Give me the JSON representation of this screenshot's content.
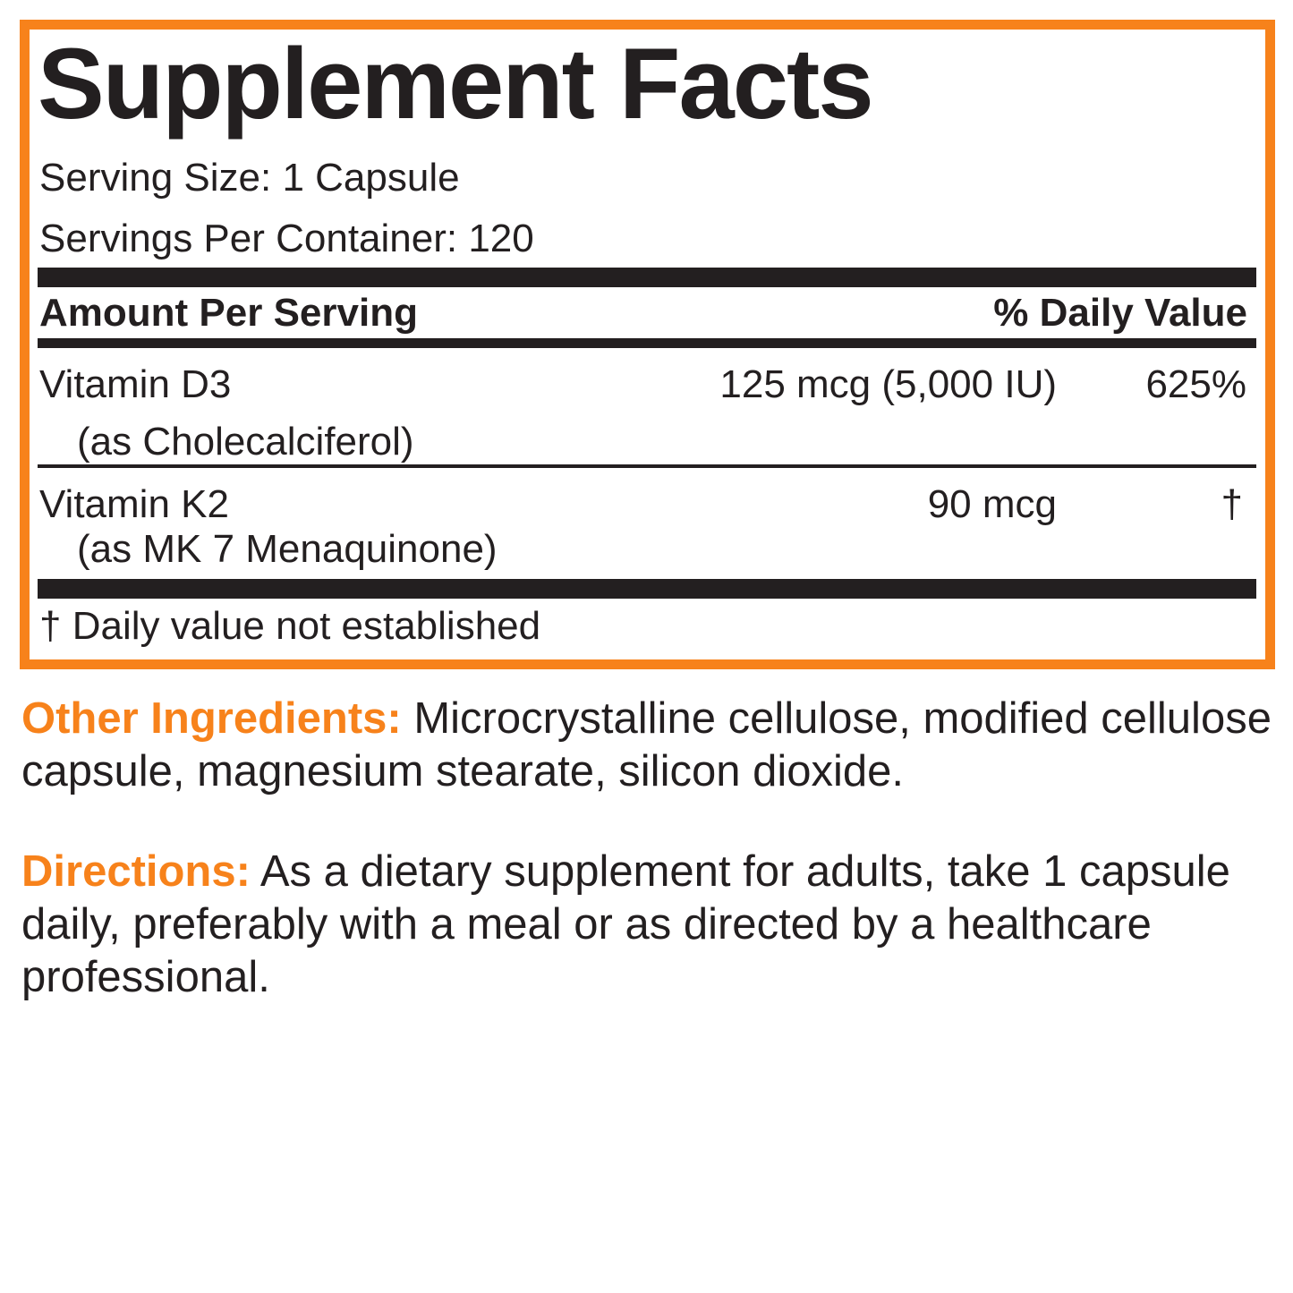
{
  "title": "Supplement Facts",
  "serving_size": "Serving Size: 1 Capsule",
  "servings_per_container": "Servings Per Container: 120",
  "header": {
    "amount": "Amount Per Serving",
    "dv": "% Daily Value"
  },
  "rows": [
    {
      "name": "Vitamin D3",
      "form": "(as Cholecalciferol)",
      "amount": "125 mcg (5,000 IU)",
      "dv": "625%"
    },
    {
      "name": "Vitamin K2",
      "form": "(as MK 7 Menaquinone)",
      "amount": "90 mcg",
      "dv": "†"
    }
  ],
  "footnote": "† Daily value not established",
  "other_ingredients": {
    "label": "Other Ingredients:",
    "text": " Microcrystalline cellulose, modified cellulose capsule, magnesium stearate, silicon dioxide."
  },
  "directions": {
    "label": "Directions:",
    "text": " As a dietary supplement for adults, take 1 capsule daily, preferably with a meal or as directed by a healthcare professional."
  },
  "colors": {
    "accent": "#f7821b",
    "text": "#231f20"
  }
}
